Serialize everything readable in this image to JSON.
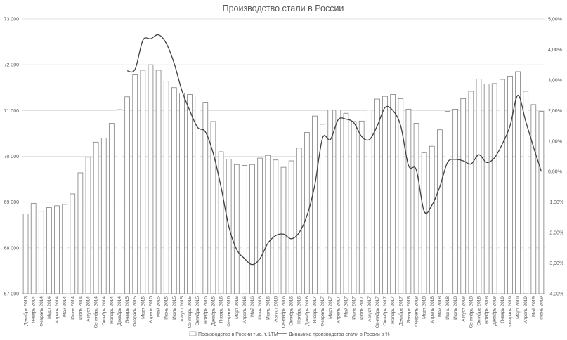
{
  "chart_data": {
    "type": "bar",
    "title": "Производство стали в России",
    "xlabel": "",
    "ylabel": "",
    "y2label": "",
    "grid": true,
    "legend_position": "bottom",
    "ylim": [
      67000,
      73000
    ],
    "y_ticks": [
      "67 000",
      "68 000",
      "69 000",
      "70 000",
      "71 000",
      "72 000",
      "73 000"
    ],
    "y2lim": [
      -4,
      5
    ],
    "y2_ticks": [
      "-4,00%",
      "-3,00%",
      "-2,00%",
      "-1,00%",
      "0,00%",
      "1,00%",
      "2,00%",
      "3,00%",
      "4,00%",
      "5,00%"
    ],
    "categories": [
      "Декабрь 2013",
      "Январь 2014",
      "Февраль 2014",
      "Март 2014",
      "Апрель 2014",
      "Май 2014",
      "Июнь 2014",
      "Июль 2014",
      "Август 2014",
      "Сентябрь 2014",
      "Октябрь 2014",
      "Ноябрь 2014",
      "Декабрь 2014",
      "Январь 2015",
      "Февраль 2015",
      "Март 2015",
      "Апрель 2015",
      "Май 2015",
      "Июнь 2015",
      "Июль 2015",
      "Август 2015",
      "Сентябрь 2015",
      "Октябрь 2015",
      "Ноябрь 2015",
      "Декабрь 2015",
      "Январь 2016",
      "Февраль 2016",
      "Март 2016",
      "Апрель 2016",
      "Май 2016",
      "Июнь 2016",
      "Июль 2016",
      "Август 2016",
      "Сентябрь 2016",
      "Октябрь 2016",
      "Ноябрь 2016",
      "Декабрь 2016",
      "Январь 2017",
      "Февраль 2017",
      "Март 2017",
      "Апрель 2017",
      "Май 2017",
      "Июнь 2017",
      "Июль 2017",
      "Август 2017",
      "Сентябрь 2017",
      "Октябрь 2017",
      "Ноябрь 2017",
      "Декабрь 2017",
      "Январь 2018",
      "Февраль 2018",
      "Март 2018",
      "Апрель 2018",
      "Май 2018",
      "Июнь 2018",
      "Июль 2018",
      "Август 2018",
      "Сентябрь 2018",
      "Октябрь 2018",
      "Ноябрь 2018",
      "Декабрь 2018",
      "Январь 2019",
      "Февраль 2019",
      "Март 2019",
      "Апрель 2019",
      "Май 2019",
      "Июнь 2019"
    ],
    "series": [
      {
        "name": "Производство в России тыс. т. LTM",
        "type": "bar",
        "axis": "left",
        "color": "#ffffff",
        "stroke": "#7f7f7f",
        "values": [
          68740,
          68970,
          68800,
          68880,
          68920,
          68950,
          69180,
          69640,
          69980,
          70310,
          70400,
          70720,
          71020,
          71300,
          71780,
          71880,
          72000,
          71880,
          71640,
          71500,
          71380,
          71350,
          71320,
          71180,
          70760,
          70100,
          69940,
          69820,
          69800,
          69820,
          69960,
          70020,
          69920,
          69760,
          69900,
          70180,
          70520,
          70880,
          70700,
          71010,
          71010,
          70940,
          70760,
          70770,
          71010,
          71250,
          71310,
          71350,
          71260,
          71030,
          70720,
          70080,
          70220,
          70580,
          70980,
          71030,
          71260,
          71420,
          71690,
          71580,
          71590,
          71680,
          71750,
          71850,
          71420,
          71130,
          70980
        ]
      },
      {
        "name": "Динамика производства стали в России в %",
        "type": "line",
        "axis": "right",
        "color": "#404040",
        "values": [
          null,
          null,
          null,
          null,
          null,
          null,
          null,
          null,
          null,
          null,
          null,
          null,
          null,
          3.3,
          3.35,
          4.3,
          4.35,
          4.48,
          4.2,
          3.55,
          2.65,
          2.0,
          1.45,
          1.3,
          0.6,
          -0.5,
          -1.8,
          -2.55,
          -2.85,
          -3.05,
          -2.85,
          -2.35,
          -2.1,
          -2.05,
          -2.2,
          -2.0,
          -1.45,
          -0.45,
          1.1,
          1.05,
          1.7,
          1.72,
          1.6,
          1.15,
          1.05,
          1.5,
          2.1,
          2.0,
          1.5,
          0.2,
          0.05,
          -1.3,
          -1.1,
          -0.5,
          0.3,
          0.4,
          0.35,
          0.25,
          0.55,
          0.3,
          0.45,
          0.9,
          1.5,
          2.5,
          1.65,
          0.8,
          0.0
        ]
      }
    ]
  }
}
